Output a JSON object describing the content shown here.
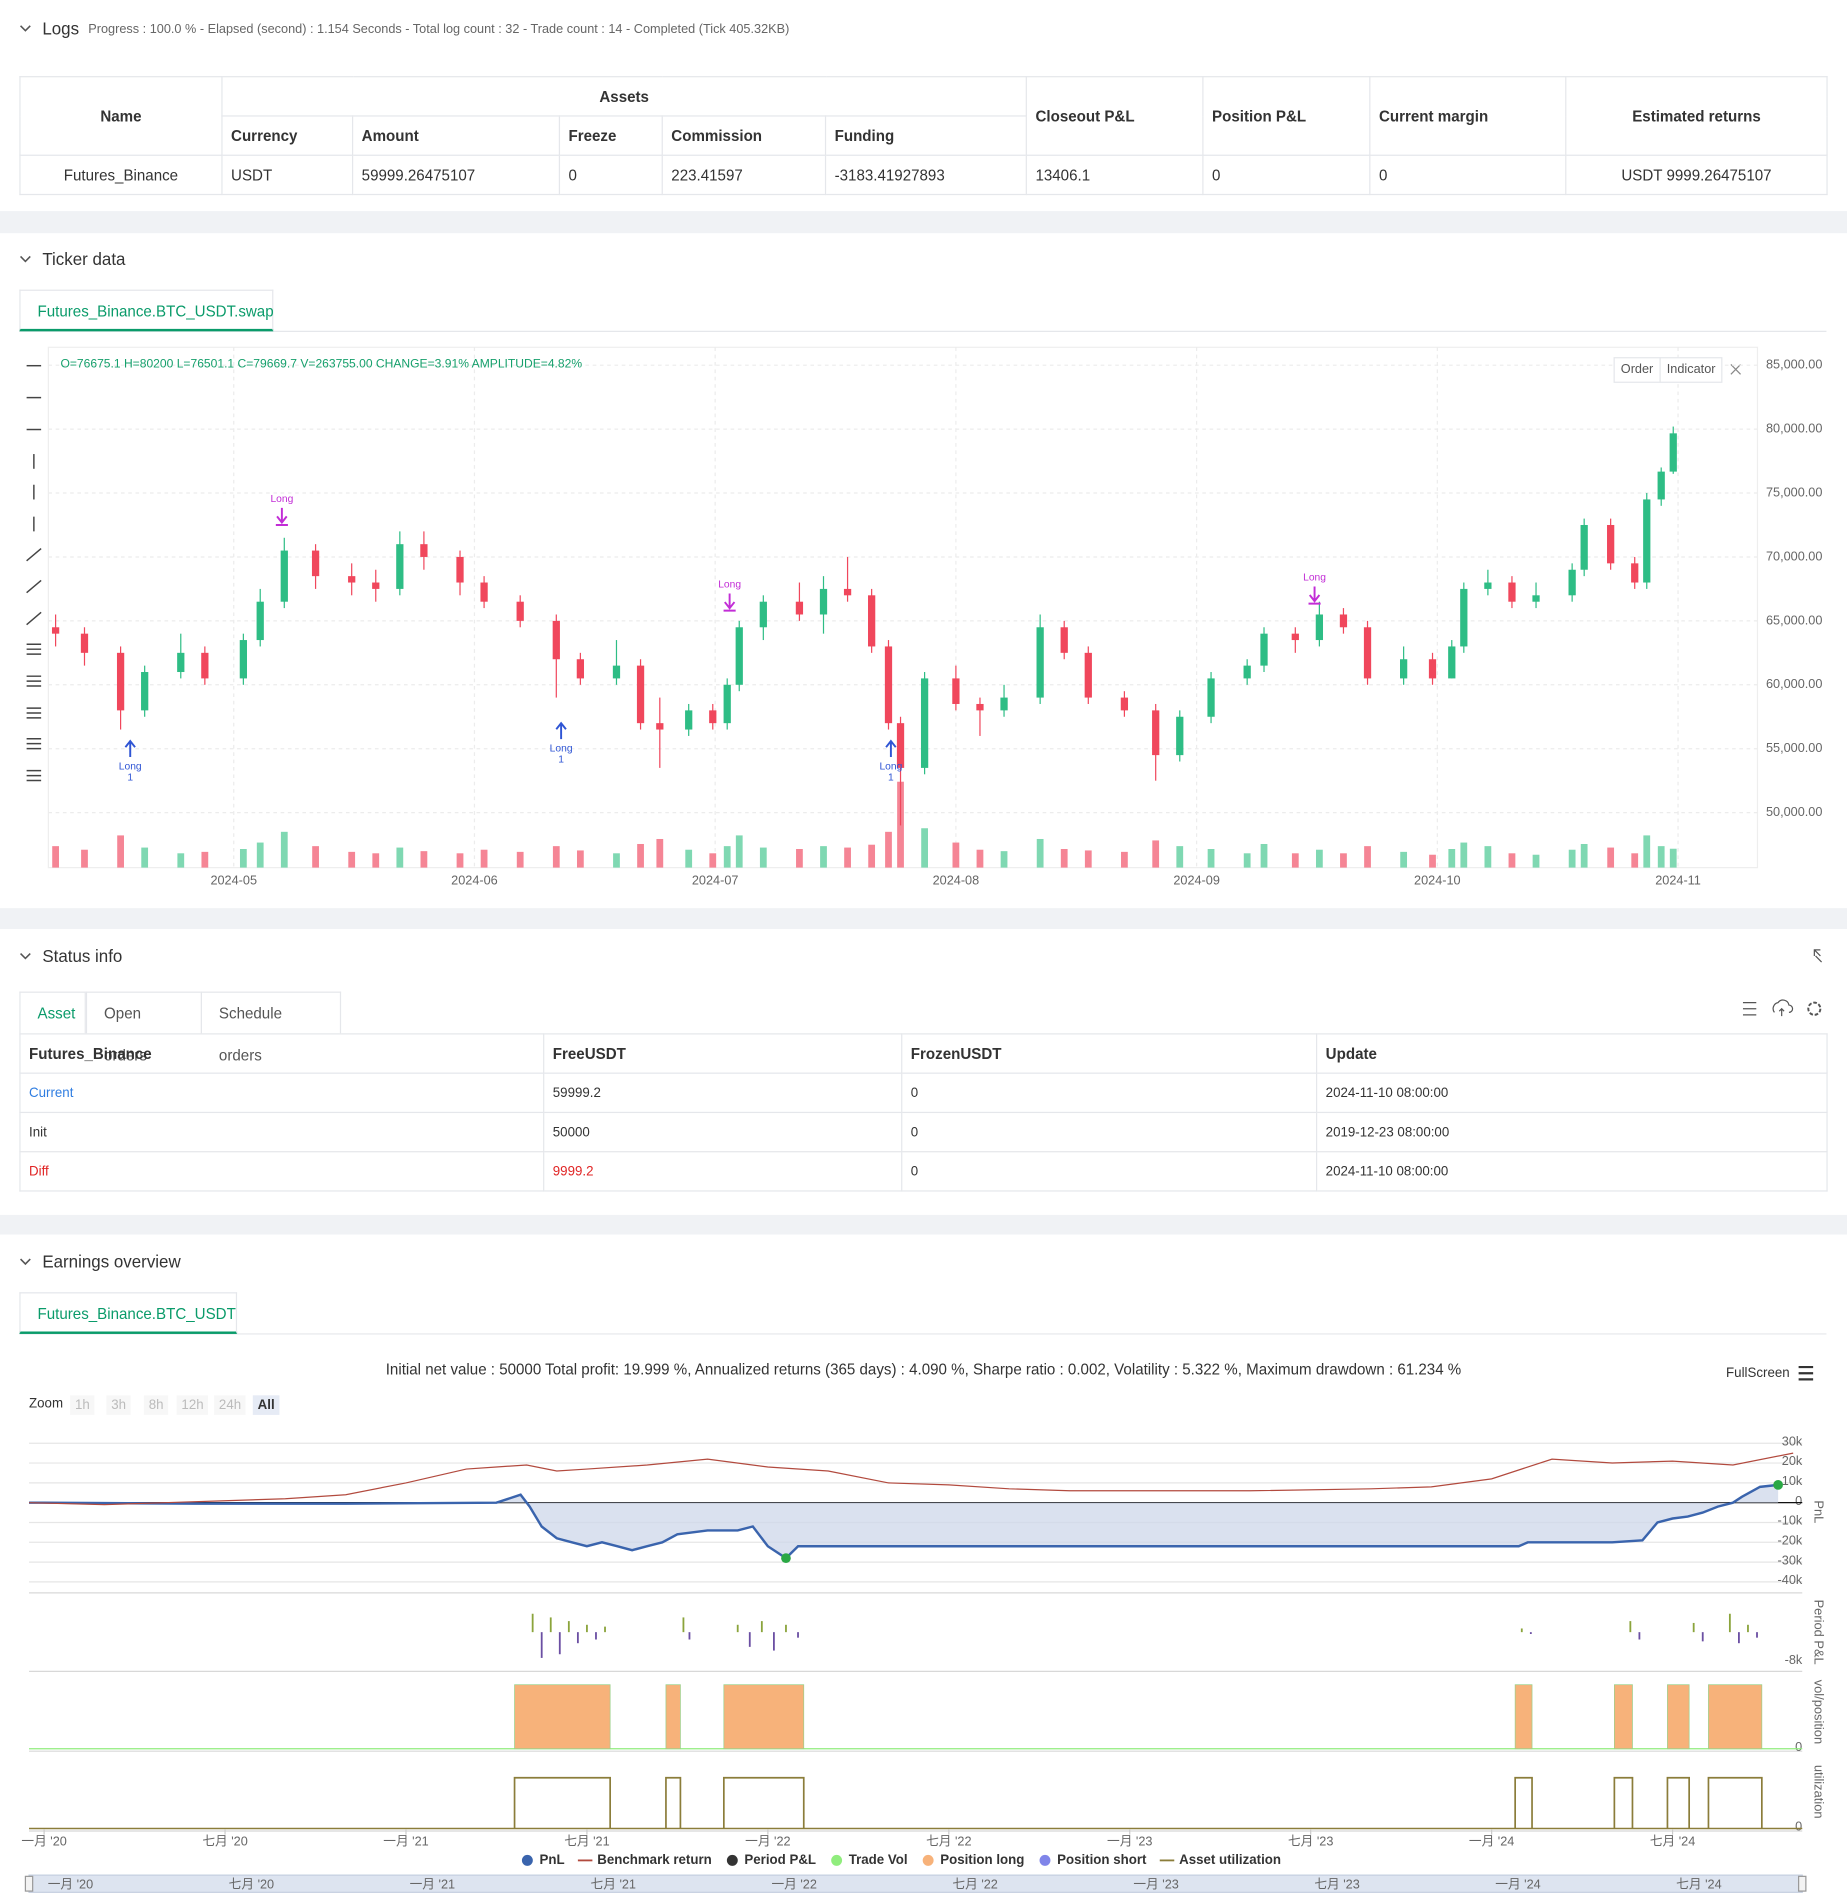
{
  "logs": {
    "title": "Logs",
    "progress": "Progress : 100.0 % - Elapsed (second) : 1.154  Seconds - Total log count : 32 - Trade count : 14 - Completed (Tick 405.32KB)",
    "table": {
      "headers": [
        "Name",
        "Assets",
        "Closeout P&L",
        "Position P&L",
        "Current margin",
        "Estimated returns"
      ],
      "subheaders": [
        "Currency",
        "Amount",
        "Freeze",
        "Commission",
        "Funding"
      ],
      "rows": [
        [
          "Futures_Binance",
          "USDT",
          "59999.26475107",
          "0",
          "223.41597",
          "-3183.41927893",
          "13406.1",
          "0",
          "0",
          "USDT 9999.26475107"
        ]
      ]
    }
  },
  "ticker": {
    "title": "Ticker data",
    "tab": "Futures_Binance.BTC_USDT.swap",
    "buttons": [
      "Order",
      "Indicator"
    ]
  },
  "status": {
    "title": "Status info",
    "tabs": [
      "Asset",
      "Open orders",
      "Schedule orders"
    ],
    "table": {
      "headers": [
        "Futures_Binance",
        "FreeUSDT",
        "FrozenUSDT",
        "Update"
      ],
      "rows": [
        [
          "Current",
          "59999.2",
          "0",
          "2024-11-10 08:00:00"
        ],
        [
          "Init",
          "50000",
          "0",
          "2019-12-23 08:00:00"
        ],
        [
          "Diff",
          "9999.2",
          "0",
          "2024-11-10 08:00:00"
        ]
      ]
    }
  },
  "earnings": {
    "title": "Earnings overview",
    "tab": "Futures_Binance.BTC_USDT",
    "fullscreen": "FullScreen",
    "zoom": "Zoom",
    "zoom_buttons": [
      "1h",
      "3h",
      "8h",
      "12h",
      "24h",
      "All"
    ]
  },
  "chart_data": [
    {
      "type": "candlestick",
      "subtitle": "O=76675.1 H=80200 L=76501.1 C=79669.7 V=263755.00 CHANGE=3.91% AMPLITUDE=4.82%",
      "up_color": "#2ebd85",
      "down_color": "#f0475c",
      "volume_up_color": "#7fd8b2",
      "volume_down_color": "#f58595",
      "xlim": [
        -0.77,
        6.33
      ],
      "xticks": [
        {
          "value": 0,
          "label": "2024-05"
        },
        {
          "value": 1,
          "label": "2024-06"
        },
        {
          "value": 2,
          "label": "2024-07"
        },
        {
          "value": 3,
          "label": "2024-08"
        },
        {
          "value": 4,
          "label": "2024-09"
        },
        {
          "value": 5,
          "label": "2024-10"
        },
        {
          "value": 6,
          "label": "2024-11"
        }
      ],
      "ylim": [
        45700,
        86400
      ],
      "yticks": [
        {
          "value": 50000,
          "label": "50,000.00"
        },
        {
          "value": 55000,
          "label": "55,000.00"
        },
        {
          "value": 60000,
          "label": "60,000.00"
        },
        {
          "value": 65000,
          "label": "65,000.00"
        },
        {
          "value": 70000,
          "label": "70,000.00"
        },
        {
          "value": 75000,
          "label": "75,000.00"
        },
        {
          "value": 80000,
          "label": "80,000.00"
        },
        {
          "value": 85000,
          "label": "85,000.00"
        }
      ],
      "grid": true,
      "x": [
        -0.74,
        -0.62,
        -0.47,
        -0.37,
        -0.22,
        -0.12,
        0.04,
        0.11,
        0.21,
        0.34,
        0.49,
        0.59,
        0.69,
        0.79,
        0.94,
        1.04,
        1.19,
        1.34,
        1.44,
        1.59,
        1.69,
        1.77,
        1.89,
        1.99,
        2.05,
        2.1,
        2.2,
        2.35,
        2.45,
        2.55,
        2.65,
        2.72,
        2.77,
        2.87,
        3.0,
        3.1,
        3.2,
        3.35,
        3.45,
        3.55,
        3.7,
        3.83,
        3.93,
        4.06,
        4.21,
        4.28,
        4.41,
        4.51,
        4.61,
        4.71,
        4.86,
        4.98,
        5.06,
        5.11,
        5.21,
        5.31,
        5.41,
        5.56,
        5.61,
        5.72,
        5.82,
        5.87,
        5.93,
        5.98
      ],
      "open": [
        64500,
        64000,
        62500,
        58000,
        61000,
        62500,
        60500,
        63500,
        66500,
        70500,
        68500,
        68000,
        67500,
        71000,
        70000,
        68000,
        66500,
        65000,
        62000,
        60500,
        61500,
        57000,
        56500,
        58000,
        57000,
        60000,
        64500,
        66500,
        65500,
        67500,
        67000,
        63000,
        57000,
        53500,
        60500,
        58500,
        58000,
        59000,
        64500,
        62500,
        59000,
        58000,
        54500,
        57500,
        60500,
        61500,
        64000,
        63500,
        65500,
        64500,
        60500,
        62000,
        60500,
        63000,
        67500,
        68000,
        66500,
        67000,
        69000,
        72500,
        69500,
        68000,
        74500,
        76675.1
      ],
      "high": [
        65500,
        64500,
        63000,
        61500,
        64000,
        63000,
        64000,
        67500,
        71500,
        71000,
        69500,
        69000,
        72000,
        72000,
        70500,
        68500,
        67000,
        65500,
        62500,
        63500,
        62000,
        59000,
        58500,
        58500,
        60500,
        65000,
        67000,
        68000,
        68500,
        70000,
        67500,
        63500,
        57500,
        61000,
        61500,
        59000,
        60000,
        65500,
        65000,
        63000,
        59500,
        58500,
        58000,
        61000,
        62000,
        64500,
        64500,
        66500,
        66000,
        65000,
        63000,
        62500,
        63500,
        68000,
        69000,
        68500,
        68000,
        69500,
        73000,
        73000,
        70000,
        75000,
        77000,
        80200
      ],
      "low": [
        63000,
        61500,
        56500,
        57500,
        60500,
        60000,
        60000,
        63000,
        66000,
        67500,
        67000,
        66500,
        67000,
        69000,
        67000,
        66000,
        64500,
        59000,
        60000,
        60000,
        56500,
        53500,
        56000,
        56500,
        56500,
        59500,
        63500,
        65000,
        64000,
        66500,
        62500,
        56500,
        49000,
        53000,
        58000,
        56000,
        57500,
        58500,
        62000,
        58500,
        57500,
        52500,
        54000,
        57000,
        60000,
        61000,
        62500,
        63000,
        64000,
        60000,
        60000,
        60000,
        60500,
        62500,
        67000,
        66000,
        66000,
        66500,
        68500,
        69000,
        67500,
        67500,
        74000,
        76501.1
      ],
      "close": [
        64000,
        62500,
        58000,
        61000,
        62500,
        60500,
        63500,
        66500,
        70500,
        68500,
        68000,
        67500,
        71000,
        70000,
        68000,
        66500,
        65000,
        62000,
        60500,
        61500,
        57000,
        56500,
        58000,
        57000,
        60000,
        64500,
        66500,
        65500,
        67500,
        67000,
        63000,
        57000,
        53500,
        60500,
        58500,
        58000,
        59000,
        64500,
        62500,
        59000,
        58000,
        54500,
        57500,
        60500,
        61500,
        64000,
        63500,
        65500,
        64500,
        60500,
        62000,
        60500,
        63000,
        67500,
        68000,
        66500,
        67000,
        69000,
        72500,
        69500,
        68000,
        74500,
        76675.1,
        79669.7
      ],
      "volume": [
        300000,
        250000,
        450000,
        280000,
        200000,
        220000,
        260000,
        350000,
        500000,
        300000,
        220000,
        200000,
        280000,
        230000,
        200000,
        250000,
        220000,
        300000,
        240000,
        200000,
        330000,
        400000,
        250000,
        200000,
        300000,
        450000,
        280000,
        260000,
        300000,
        280000,
        320000,
        500000,
        1200000,
        550000,
        350000,
        250000,
        230000,
        400000,
        260000,
        240000,
        220000,
        380000,
        300000,
        260000,
        200000,
        330000,
        200000,
        250000,
        200000,
        300000,
        220000,
        180000,
        260000,
        350000,
        300000,
        200000,
        180000,
        250000,
        330000,
        280000,
        200000,
        450000,
        300000,
        263755
      ],
      "entries": {
        "color": "#2f55d4",
        "points": [
          {
            "x": -0.43,
            "price": 55600,
            "label": "Long",
            "count": "1"
          },
          {
            "x": 1.36,
            "price": 57000,
            "label": "Long",
            "count": "1"
          },
          {
            "x": 2.73,
            "price": 55600,
            "label": "Long",
            "count": "1"
          }
        ]
      },
      "exits": {
        "color": "#c22dd6",
        "points": [
          {
            "x": 0.2,
            "price": 72500,
            "label": "Long"
          },
          {
            "x": 2.06,
            "price": 65800,
            "label": "Long"
          },
          {
            "x": 4.49,
            "price": 66350,
            "label": "Long"
          }
        ]
      }
    },
    {
      "type": "line",
      "title": "Initial net value : 50000 Total profit: 19.999 %, Annualized returns (365 days) : 4.090 %, Sharpe ratio : 0.002, Volatility : 5.322 %, Maximum drawdown : 61.234 %",
      "xlim": [
        -0.5,
        58.3
      ],
      "xticks": [
        {
          "value": 0,
          "label": "一月 '20"
        },
        {
          "value": 6,
          "label": "七月 '20"
        },
        {
          "value": 12,
          "label": "一月 '21"
        },
        {
          "value": 18,
          "label": "七月 '21"
        },
        {
          "value": 24,
          "label": "一月 '22"
        },
        {
          "value": 30,
          "label": "七月 '22"
        },
        {
          "value": 36,
          "label": "一月 '23"
        },
        {
          "value": 42,
          "label": "七月 '23"
        },
        {
          "value": 48,
          "label": "一月 '24"
        },
        {
          "value": 54,
          "label": "七月 '24"
        }
      ],
      "panels": {
        "pnl": {
          "title": "PnL",
          "ylim": [
            -44300,
            35000
          ],
          "yticks": [
            {
              "value": 30000,
              "label": "30k"
            },
            {
              "value": 20000,
              "label": "20k"
            },
            {
              "value": 10000,
              "label": "10k"
            },
            0,
            {
              "value": -10000,
              "label": "-10k"
            },
            {
              "value": -20000,
              "label": "-20k"
            },
            {
              "value": -30000,
              "label": "-30k"
            },
            {
              "value": -40000,
              "label": "-40k"
            }
          ]
        },
        "period": {
          "title": "Period P&L",
          "ylim": [
            -10000,
            10000
          ],
          "yticks": [
            {
              "value": -8000,
              "label": "-8k"
            }
          ]
        },
        "vol": {
          "title": "vol/position",
          "ylim": [
            0,
            1.15
          ],
          "yticks": [
            0
          ]
        },
        "util": {
          "title": "utilization",
          "ylim": [
            0,
            1.45
          ],
          "yticks": [
            0
          ]
        }
      },
      "series": [
        {
          "name": "PnL",
          "color": "#3a64ad",
          "style": "area",
          "panel": "pnl",
          "x": [
            -0.5,
            0,
            5,
            10,
            15,
            15.8,
            16.1,
            16.5,
            17,
            17.5,
            18,
            18.5,
            19,
            19.5,
            20,
            20.5,
            21,
            22,
            23,
            23.5,
            24,
            24.6,
            25,
            26,
            30,
            40,
            48.9,
            49.2,
            52,
            53,
            53.5,
            54,
            54.5,
            55,
            55.5,
            56,
            56.3,
            56.9,
            57.5
          ],
          "values": [
            0,
            0,
            -500,
            -500,
            0,
            4000,
            -2000,
            -12000,
            -18000,
            -20000,
            -22000,
            -20000,
            -22000,
            -24000,
            -22000,
            -20000,
            -16000,
            -14000,
            -14000,
            -12000,
            -22000,
            -28000,
            -22000,
            -22000,
            -22000,
            -22000,
            -22000,
            -20000,
            -20000,
            -19000,
            -10000,
            -8000,
            -7000,
            -5000,
            -2000,
            0,
            3000,
            8000,
            9000
          ]
        },
        {
          "name": "Benchmark return",
          "color": "#b24a3e",
          "style": "line",
          "panel": "pnl",
          "x": [
            -0.5,
            2,
            4,
            6,
            8,
            10,
            12,
            14,
            15,
            16,
            17,
            18,
            20,
            22,
            24,
            26,
            28,
            30,
            32,
            34,
            36,
            40,
            44,
            46,
            48,
            50,
            52,
            54,
            56,
            58
          ],
          "values": [
            0,
            -1000,
            0,
            1000,
            2000,
            4000,
            10000,
            17000,
            18000,
            19000,
            16000,
            17000,
            19000,
            22000,
            18000,
            16000,
            10000,
            9000,
            7000,
            6000,
            6000,
            6000,
            7000,
            8000,
            12000,
            22000,
            20000,
            21000,
            19000,
            25000
          ]
        },
        {
          "name": "Period P&L",
          "color": "#333333",
          "style": "bar",
          "panel": "period",
          "up_color": "#8ba43c",
          "down_color": "#6b4fa3",
          "x": [
            16.2,
            16.5,
            16.8,
            17.1,
            17.4,
            17.7,
            18.0,
            18.3,
            18.6,
            21.2,
            21.4,
            23.0,
            23.4,
            23.8,
            24.2,
            24.6,
            25.0,
            49.0,
            49.3,
            52.6,
            52.9,
            54.7,
            55.0,
            55.9,
            56.2,
            56.5,
            56.8
          ],
          "values": [
            5000,
            -7000,
            4000,
            -6000,
            3000,
            -3000,
            2000,
            -2000,
            1500,
            4000,
            -2000,
            2000,
            -4000,
            3000,
            -5000,
            2000,
            -1500,
            1000,
            -500,
            3000,
            -2000,
            2500,
            -2500,
            5000,
            -3000,
            2000,
            -1500
          ]
        },
        {
          "name": "Trade Vol",
          "color": "#90ed7d",
          "style": "line",
          "panel": "vol",
          "x": [
            -0.5,
            58.3
          ],
          "values": [
            0,
            0
          ]
        },
        {
          "name": "Position long",
          "color": "#f7b27a",
          "style": "interval",
          "panel": "vol",
          "start": [
            15.6,
            20.62,
            22.54,
            48.78,
            52.07,
            53.83,
            55.19
          ],
          "end": [
            18.77,
            21.1,
            25.19,
            49.34,
            52.67,
            54.55,
            56.96
          ],
          "values": [
            1,
            1,
            1,
            1,
            1,
            1,
            1
          ]
        },
        {
          "name": "Position short",
          "color": "#8085e9",
          "style": "line",
          "panel": "vol",
          "x": [],
          "values": []
        },
        {
          "name": "Asset utilization",
          "color": "#8b7d3a",
          "style": "step",
          "panel": "util",
          "start": [
            15.6,
            20.62,
            22.54,
            48.78,
            52.07,
            53.83,
            55.19
          ],
          "end": [
            18.77,
            21.1,
            25.19,
            49.34,
            52.67,
            54.55,
            56.96
          ],
          "values": [
            1,
            1,
            1,
            1,
            1,
            1,
            1
          ]
        }
      ]
    }
  ]
}
